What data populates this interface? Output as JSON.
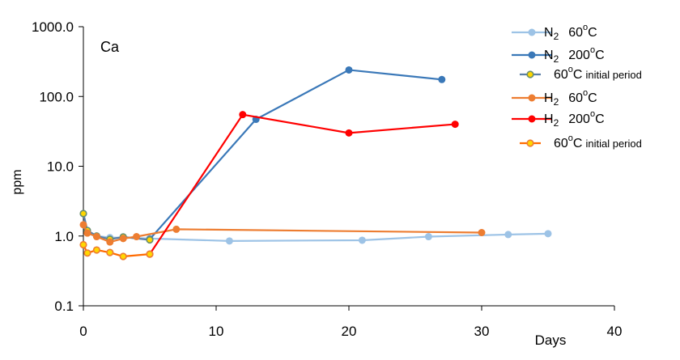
{
  "chart_data": {
    "type": "line",
    "panel_label": "Ca",
    "xlabel": "Days",
    "ylabel": "ppm",
    "xlim": [
      0,
      40
    ],
    "ylim": [
      0.1,
      1000
    ],
    "y_scale": "log",
    "x_ticks": [
      "0",
      "10",
      "20",
      "30",
      "40"
    ],
    "y_ticks": [
      "1000.0",
      "100.0",
      "10.0",
      "1.0",
      "0.1"
    ],
    "grid": false,
    "legend_position": "top-right",
    "series": [
      {
        "name": "N2 60°C",
        "legend": {
          "main": "N",
          "sub": "2",
          "temp": "60",
          "sup": "o",
          "unit": "C",
          "extra": ""
        },
        "color": "#9dc3e6",
        "marker": "circle",
        "marker_fill": "#9dc3e6",
        "marker_stroke": "#9dc3e6",
        "x": [
          0,
          0.3,
          1,
          2,
          3,
          5,
          11,
          21,
          26,
          32,
          35
        ],
        "y": [
          2.1,
          1.2,
          1.0,
          0.95,
          0.95,
          0.92,
          0.85,
          0.87,
          0.98,
          1.05,
          1.08
        ]
      },
      {
        "name": "N2 200°C",
        "legend": {
          "main": "N",
          "sub": "2",
          "temp": "200",
          "sup": "o",
          "unit": "C",
          "extra": ""
        },
        "color": "#3a78b8",
        "marker": "circle",
        "marker_fill": "#3a78b8",
        "marker_stroke": "#3a78b8",
        "x": [
          5,
          13,
          20,
          27
        ],
        "y": [
          0.9,
          47,
          240,
          175
        ]
      },
      {
        "name": "60°C initial period",
        "legend": {
          "main": "",
          "sub": "",
          "temp": "60",
          "sup": "o",
          "unit": "C",
          "extra": "initial period"
        },
        "color": "#5b7fa6",
        "marker": "circle",
        "marker_fill": "#ffd700",
        "marker_stroke": "#6b8e6b",
        "x": [
          0,
          0.3,
          1,
          2,
          3,
          5
        ],
        "y": [
          2.1,
          1.2,
          1.0,
          0.9,
          0.97,
          0.88
        ]
      },
      {
        "name": "H2 60°C",
        "legend": {
          "main": "H",
          "sub": "2",
          "temp": "60",
          "sup": "o",
          "unit": "C",
          "extra": ""
        },
        "color": "#ed7d31",
        "marker": "circle",
        "marker_fill": "#ed7d31",
        "marker_stroke": "#ed7d31",
        "x": [
          0,
          0.3,
          1,
          2,
          3,
          4,
          7,
          30
        ],
        "y": [
          1.45,
          1.1,
          0.98,
          0.82,
          0.92,
          0.98,
          1.25,
          1.12
        ]
      },
      {
        "name": "H2 200°C",
        "legend": {
          "main": "H",
          "sub": "2",
          "temp": "200",
          "sup": "o",
          "unit": "C",
          "extra": ""
        },
        "color": "#ff0000",
        "marker": "circle",
        "marker_fill": "#ff0000",
        "marker_stroke": "#ff0000",
        "x": [
          5,
          12,
          20,
          28
        ],
        "y": [
          0.55,
          55,
          30,
          40
        ]
      },
      {
        "name": "60°C initial period",
        "legend": {
          "main": "",
          "sub": "",
          "temp": "60",
          "sup": "o",
          "unit": "C",
          "extra": "initial period"
        },
        "color": "#ff6a00",
        "marker": "circle",
        "marker_fill": "#ffd700",
        "marker_stroke": "#ed7d31",
        "x": [
          0,
          0.3,
          1,
          2,
          3,
          5
        ],
        "y": [
          0.75,
          0.57,
          0.63,
          0.58,
          0.51,
          0.55
        ]
      }
    ]
  }
}
